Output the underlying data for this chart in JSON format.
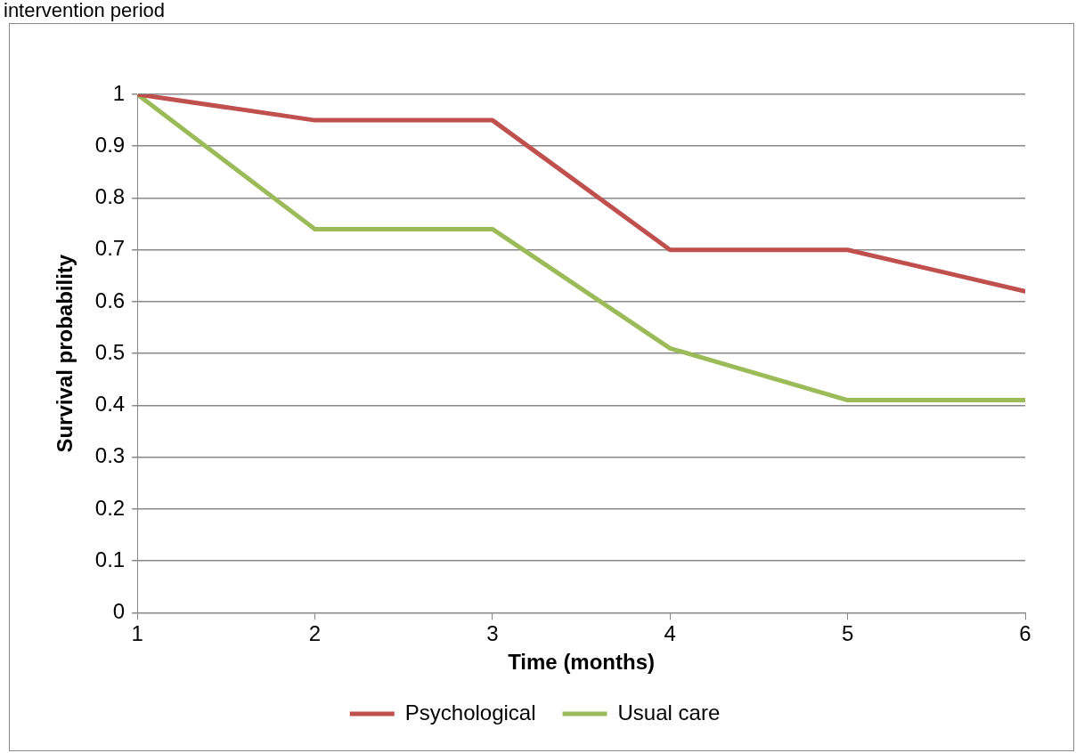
{
  "chart_data": {
    "type": "line",
    "title": "intervention period",
    "xlabel": "Time (months)",
    "ylabel": "Survival probability",
    "x": [
      1,
      2,
      3,
      4,
      5,
      6
    ],
    "series": [
      {
        "name": "Psychological",
        "color": "#c0504d",
        "values": [
          1,
          0.95,
          0.95,
          0.7,
          0.7,
          0.62
        ]
      },
      {
        "name": "Usual care",
        "color": "#9bbb59",
        "values": [
          1,
          0.74,
          0.74,
          0.51,
          0.41,
          0.41
        ]
      }
    ],
    "xlim": [
      1,
      6
    ],
    "xticks": [
      1,
      2,
      3,
      4,
      5,
      6
    ],
    "ylim": [
      0,
      1
    ],
    "yticks": [
      0,
      0.1,
      0.2,
      0.3,
      0.4,
      0.5,
      0.6,
      0.7,
      0.8,
      0.9,
      1
    ],
    "grid": "y",
    "legend": "bottom",
    "marker": "none",
    "line_style": "solid"
  }
}
